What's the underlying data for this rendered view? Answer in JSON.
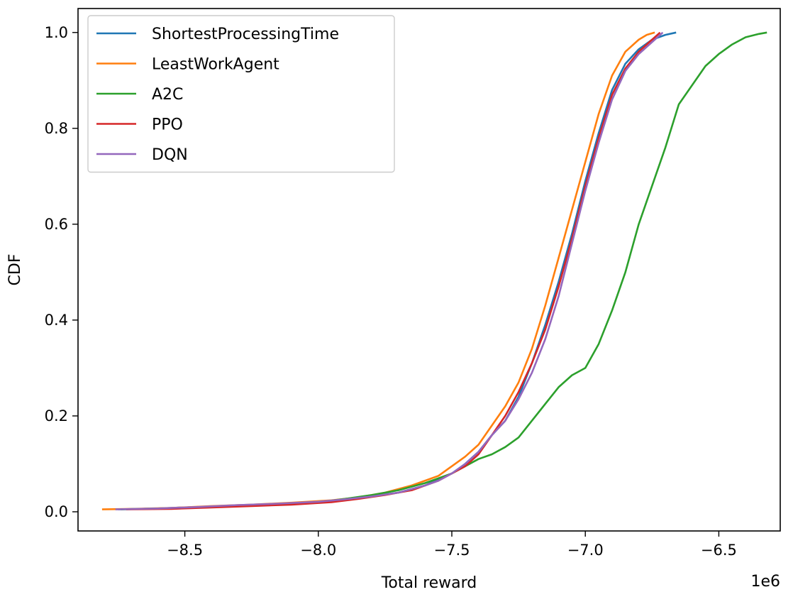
{
  "chart_data": {
    "type": "line",
    "title": "",
    "xlabel": "Total reward",
    "ylabel": "CDF",
    "x_offset_label": "1e6",
    "xlim": [
      -8.9,
      -6.27
    ],
    "ylim": [
      -0.04,
      1.05
    ],
    "xticks": [
      -8.5,
      -8.0,
      -7.5,
      -7.0,
      -6.5
    ],
    "xtick_labels": [
      "−8.5",
      "−8.0",
      "−7.5",
      "−7.0",
      "−6.5"
    ],
    "yticks": [
      0.0,
      0.2,
      0.4,
      0.6,
      0.8,
      1.0
    ],
    "ytick_labels": [
      "0.0",
      "0.2",
      "0.4",
      "0.6",
      "0.8",
      "1.0"
    ],
    "grid": false,
    "legend_position": "top-left",
    "series": [
      {
        "name": "ShortestProcessingTime",
        "color": "#1f77b4",
        "points": [
          [
            -8.75,
            0.005
          ],
          [
            -8.6,
            0.007
          ],
          [
            -8.45,
            0.01
          ],
          [
            -8.3,
            0.013
          ],
          [
            -8.15,
            0.016
          ],
          [
            -8.0,
            0.02
          ],
          [
            -7.9,
            0.026
          ],
          [
            -7.8,
            0.033
          ],
          [
            -7.7,
            0.04
          ],
          [
            -7.6,
            0.055
          ],
          [
            -7.55,
            0.068
          ],
          [
            -7.5,
            0.08
          ],
          [
            -7.45,
            0.1
          ],
          [
            -7.4,
            0.125
          ],
          [
            -7.35,
            0.16
          ],
          [
            -7.3,
            0.19
          ],
          [
            -7.25,
            0.24
          ],
          [
            -7.2,
            0.31
          ],
          [
            -7.15,
            0.39
          ],
          [
            -7.1,
            0.48
          ],
          [
            -7.05,
            0.58
          ],
          [
            -7.0,
            0.69
          ],
          [
            -6.95,
            0.79
          ],
          [
            -6.9,
            0.88
          ],
          [
            -6.85,
            0.935
          ],
          [
            -6.8,
            0.965
          ],
          [
            -6.75,
            0.985
          ],
          [
            -6.7,
            0.995
          ],
          [
            -6.66,
            1.0
          ]
        ]
      },
      {
        "name": "LeastWorkAgent",
        "color": "#ff7f0e",
        "points": [
          [
            -8.81,
            0.005
          ],
          [
            -8.7,
            0.006
          ],
          [
            -8.55,
            0.008
          ],
          [
            -8.4,
            0.012
          ],
          [
            -8.25,
            0.015
          ],
          [
            -8.1,
            0.019
          ],
          [
            -7.95,
            0.024
          ],
          [
            -7.85,
            0.03
          ],
          [
            -7.75,
            0.04
          ],
          [
            -7.65,
            0.055
          ],
          [
            -7.6,
            0.065
          ],
          [
            -7.55,
            0.075
          ],
          [
            -7.5,
            0.095
          ],
          [
            -7.45,
            0.115
          ],
          [
            -7.4,
            0.14
          ],
          [
            -7.35,
            0.18
          ],
          [
            -7.3,
            0.22
          ],
          [
            -7.25,
            0.27
          ],
          [
            -7.2,
            0.34
          ],
          [
            -7.15,
            0.43
          ],
          [
            -7.1,
            0.53
          ],
          [
            -7.05,
            0.63
          ],
          [
            -7.0,
            0.73
          ],
          [
            -6.95,
            0.83
          ],
          [
            -6.9,
            0.91
          ],
          [
            -6.85,
            0.96
          ],
          [
            -6.8,
            0.985
          ],
          [
            -6.77,
            0.995
          ],
          [
            -6.74,
            1.0
          ]
        ]
      },
      {
        "name": "A2C",
        "color": "#2ca02c",
        "points": [
          [
            -8.74,
            0.005
          ],
          [
            -8.6,
            0.007
          ],
          [
            -8.45,
            0.009
          ],
          [
            -8.3,
            0.012
          ],
          [
            -8.15,
            0.015
          ],
          [
            -8.0,
            0.02
          ],
          [
            -7.9,
            0.027
          ],
          [
            -7.8,
            0.035
          ],
          [
            -7.7,
            0.045
          ],
          [
            -7.6,
            0.06
          ],
          [
            -7.5,
            0.08
          ],
          [
            -7.45,
            0.095
          ],
          [
            -7.4,
            0.11
          ],
          [
            -7.35,
            0.12
          ],
          [
            -7.3,
            0.135
          ],
          [
            -7.25,
            0.155
          ],
          [
            -7.2,
            0.19
          ],
          [
            -7.15,
            0.225
          ],
          [
            -7.1,
            0.26
          ],
          [
            -7.05,
            0.285
          ],
          [
            -7.0,
            0.3
          ],
          [
            -6.95,
            0.35
          ],
          [
            -6.9,
            0.42
          ],
          [
            -6.85,
            0.5
          ],
          [
            -6.8,
            0.6
          ],
          [
            -6.75,
            0.68
          ],
          [
            -6.7,
            0.76
          ],
          [
            -6.65,
            0.85
          ],
          [
            -6.6,
            0.89
          ],
          [
            -6.55,
            0.93
          ],
          [
            -6.5,
            0.955
          ],
          [
            -6.45,
            0.975
          ],
          [
            -6.4,
            0.99
          ],
          [
            -6.35,
            0.997
          ],
          [
            -6.32,
            1.0
          ]
        ]
      },
      {
        "name": "PPO",
        "color": "#d62728",
        "points": [
          [
            -8.72,
            0.005
          ],
          [
            -8.55,
            0.006
          ],
          [
            -8.4,
            0.009
          ],
          [
            -8.25,
            0.012
          ],
          [
            -8.1,
            0.015
          ],
          [
            -7.95,
            0.02
          ],
          [
            -7.85,
            0.027
          ],
          [
            -7.75,
            0.035
          ],
          [
            -7.65,
            0.045
          ],
          [
            -7.6,
            0.055
          ],
          [
            -7.55,
            0.065
          ],
          [
            -7.5,
            0.08
          ],
          [
            -7.45,
            0.095
          ],
          [
            -7.4,
            0.12
          ],
          [
            -7.35,
            0.16
          ],
          [
            -7.3,
            0.2
          ],
          [
            -7.25,
            0.25
          ],
          [
            -7.2,
            0.31
          ],
          [
            -7.15,
            0.38
          ],
          [
            -7.1,
            0.47
          ],
          [
            -7.05,
            0.57
          ],
          [
            -7.0,
            0.68
          ],
          [
            -6.95,
            0.78
          ],
          [
            -6.9,
            0.87
          ],
          [
            -6.85,
            0.925
          ],
          [
            -6.8,
            0.96
          ],
          [
            -6.75,
            0.985
          ],
          [
            -6.72,
            1.0
          ]
        ]
      },
      {
        "name": "DQN",
        "color": "#9467bd",
        "points": [
          [
            -8.76,
            0.005
          ],
          [
            -8.6,
            0.007
          ],
          [
            -8.45,
            0.01
          ],
          [
            -8.3,
            0.014
          ],
          [
            -8.15,
            0.017
          ],
          [
            -8.0,
            0.021
          ],
          [
            -7.9,
            0.026
          ],
          [
            -7.8,
            0.032
          ],
          [
            -7.7,
            0.04
          ],
          [
            -7.6,
            0.055
          ],
          [
            -7.55,
            0.065
          ],
          [
            -7.5,
            0.08
          ],
          [
            -7.45,
            0.1
          ],
          [
            -7.4,
            0.125
          ],
          [
            -7.35,
            0.16
          ],
          [
            -7.3,
            0.19
          ],
          [
            -7.25,
            0.235
          ],
          [
            -7.2,
            0.29
          ],
          [
            -7.15,
            0.36
          ],
          [
            -7.1,
            0.45
          ],
          [
            -7.05,
            0.56
          ],
          [
            -7.0,
            0.67
          ],
          [
            -6.95,
            0.77
          ],
          [
            -6.9,
            0.86
          ],
          [
            -6.85,
            0.92
          ],
          [
            -6.8,
            0.955
          ],
          [
            -6.75,
            0.98
          ],
          [
            -6.71,
            1.0
          ]
        ]
      }
    ]
  }
}
